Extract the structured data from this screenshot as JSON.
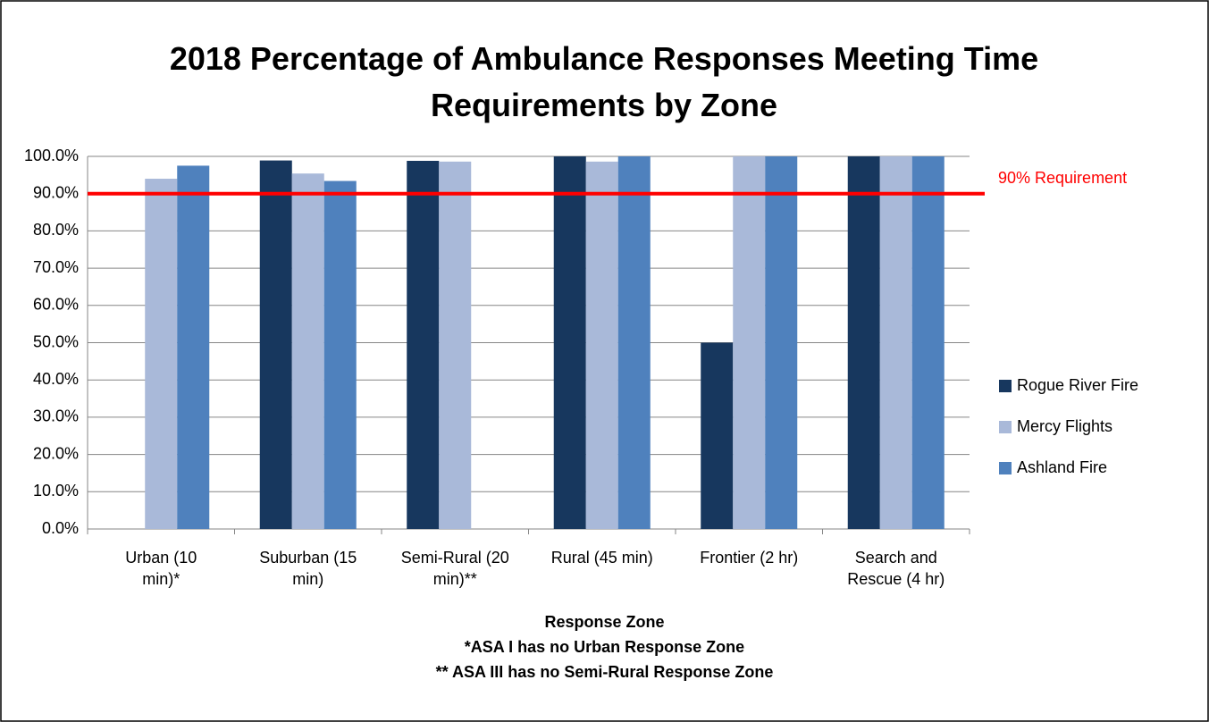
{
  "chart_data": {
    "type": "bar",
    "title": "2018 Percentage of Ambulance Responses Meeting Time Requirements by Zone",
    "categories": [
      "Urban (10 min)*",
      "Suburban (15 min)",
      "Semi-Rural (20 min)**",
      "Rural (45 min)",
      "Frontier (2 hr)",
      "Search and Rescue (4 hr)"
    ],
    "series": [
      {
        "name": "Rogue River Fire",
        "color": "#17375e",
        "values": [
          null,
          98.9,
          98.8,
          100,
          50,
          100
        ]
      },
      {
        "name": "Mercy Flights",
        "color": "#a9b9d9",
        "values": [
          94.0,
          95.4,
          98.6,
          98.6,
          100,
          100
        ]
      },
      {
        "name": "Ashland Fire",
        "color": "#4f81bd",
        "values": [
          97.5,
          93.4,
          null,
          100,
          100,
          100
        ]
      }
    ],
    "ylim": [
      0,
      100
    ],
    "yticks": [
      {
        "value": 0,
        "label": "0.0%"
      },
      {
        "value": 10,
        "label": "10.0%"
      },
      {
        "value": 20,
        "label": "20.0%"
      },
      {
        "value": 30,
        "label": "30.0%"
      },
      {
        "value": 40,
        "label": "40.0%"
      },
      {
        "value": 50,
        "label": "50.0%"
      },
      {
        "value": 60,
        "label": "60.0%"
      },
      {
        "value": 70,
        "label": "70.0%"
      },
      {
        "value": 80,
        "label": "80.0%"
      },
      {
        "value": 90,
        "label": "90.0%"
      },
      {
        "value": 100,
        "label": "100.0%"
      }
    ],
    "grid": true,
    "x_label": "Response Zone",
    "notes": [
      "*ASA I has no Urban Response Zone",
      "** ASA III has no Semi-Rural Response Zone"
    ],
    "reference_line": {
      "value": 90,
      "label": "90% Requirement",
      "color": "#ff0000"
    },
    "legend": "right"
  }
}
